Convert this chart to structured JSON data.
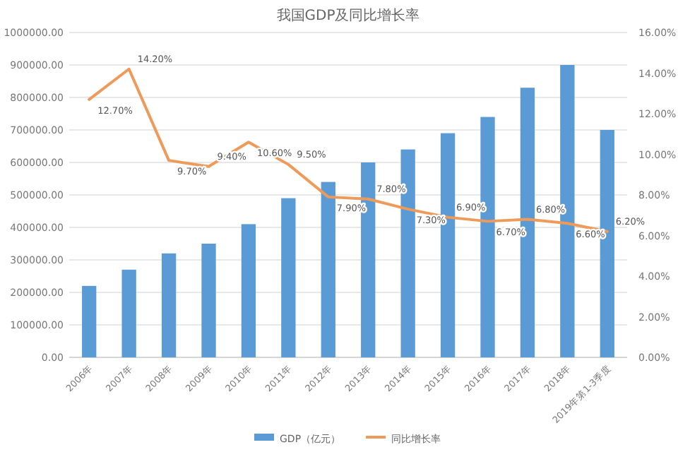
{
  "chart_data": {
    "type": "bar",
    "title": "我国GDP及同比增长率",
    "categories": [
      "2006年",
      "2007年",
      "2008年",
      "2009年",
      "2010年",
      "2011年",
      "2012年",
      "2013年",
      "2014年",
      "2015年",
      "2016年",
      "2017年",
      "2018年",
      "2019年第1-3季度"
    ],
    "series": [
      {
        "name": "GDP（亿元）",
        "color": "#5b9bd5",
        "values": [
          220000,
          270000,
          320000,
          350000,
          410000,
          490000,
          540000,
          600000,
          640000,
          690000,
          740000,
          830000,
          900000,
          700000
        ]
      },
      {
        "name": "同比增长率",
        "type": "line",
        "axis": "y2",
        "color": "#ed9a5a",
        "values": [
          12.7,
          14.2,
          9.7,
          9.4,
          10.6,
          9.5,
          7.9,
          7.8,
          7.3,
          6.9,
          6.7,
          6.8,
          6.6,
          6.2
        ],
        "value_labels": [
          "12.70%",
          "14.20%",
          "9.70%",
          "9.40%",
          "10.60%",
          "9.50%",
          "7.90%",
          "7.80%",
          "7.30%",
          "6.90%",
          "6.70%",
          "6.80%",
          "6.60%",
          "6.20%"
        ]
      }
    ],
    "ylim": [
      0,
      1000000
    ],
    "yticks": [
      {
        "value": 0,
        "label": "0.00"
      },
      {
        "value": 100000,
        "label": "100000.00"
      },
      {
        "value": 200000,
        "label": "200000.00"
      },
      {
        "value": 300000,
        "label": "300000.00"
      },
      {
        "value": 400000,
        "label": "400000.00"
      },
      {
        "value": 500000,
        "label": "500000.00"
      },
      {
        "value": 600000,
        "label": "600000.00"
      },
      {
        "value": 700000,
        "label": "700000.00"
      },
      {
        "value": 800000,
        "label": "800000.00"
      },
      {
        "value": 900000,
        "label": "900000.00"
      },
      {
        "value": 1000000,
        "label": "1000000.00"
      }
    ],
    "y2lim": [
      0,
      16
    ],
    "y2ticks": [
      {
        "value": 0,
        "label": "0.00%"
      },
      {
        "value": 2,
        "label": "2.00%"
      },
      {
        "value": 4,
        "label": "4.00%"
      },
      {
        "value": 6,
        "label": "6.00%"
      },
      {
        "value": 8,
        "label": "8.00%"
      },
      {
        "value": 10,
        "label": "10.00%"
      },
      {
        "value": 12,
        "label": "12.00%"
      },
      {
        "value": 14,
        "label": "14.00%"
      },
      {
        "value": 16,
        "label": "16.00%"
      }
    ],
    "grid": "y",
    "legend": "bottom"
  }
}
